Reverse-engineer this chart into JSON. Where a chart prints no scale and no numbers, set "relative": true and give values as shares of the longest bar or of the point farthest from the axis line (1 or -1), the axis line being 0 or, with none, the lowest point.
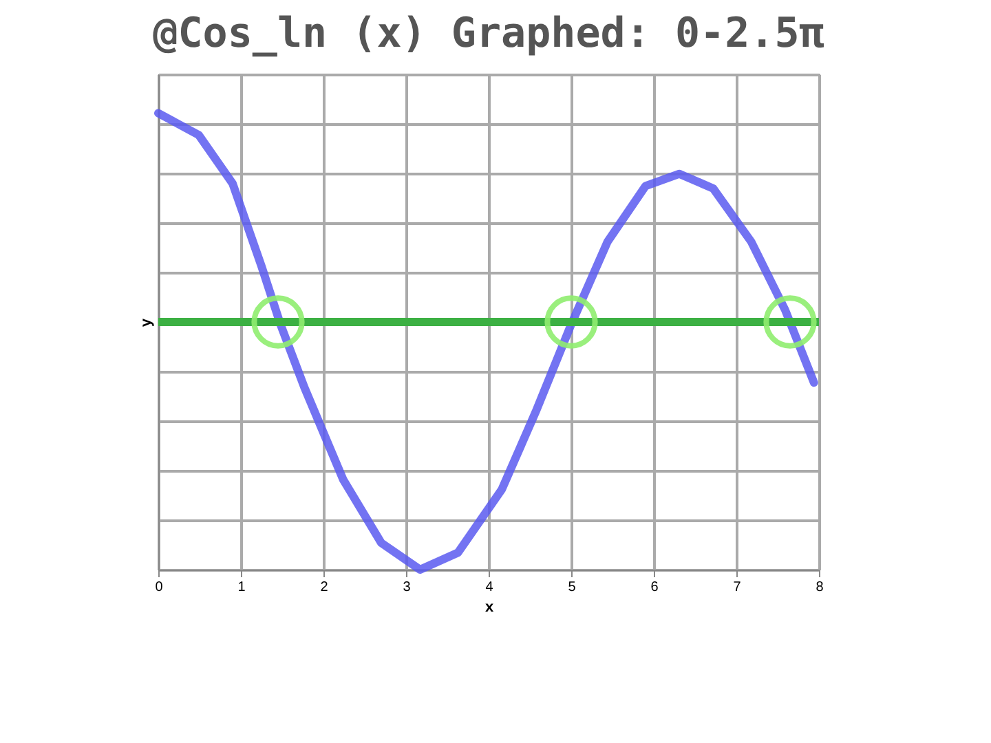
{
  "chart_data": {
    "type": "line",
    "title": "@Cos_ln (x) Graphed: 0-2.5π",
    "xlabel": "x",
    "ylabel": "y",
    "relative": true,
    "xlim": [
      0,
      8
    ],
    "xticks": [
      0,
      1,
      2,
      3,
      4,
      5,
      6,
      7,
      8
    ],
    "grid": true,
    "series": [
      {
        "color": "#5b5bf0",
        "x": [
          0,
          0.49,
          0.9,
          1.25,
          1.48,
          1.77,
          2.24,
          2.7,
          3.17,
          3.63,
          4.16,
          4.57,
          5.0,
          5.44,
          5.9,
          6.31,
          6.72,
          7.18,
          7.59,
          7.94
        ],
        "values": [
          0.843,
          0.755,
          0.559,
          0.225,
          -0.01,
          -0.265,
          -0.637,
          -0.892,
          -1,
          -0.931,
          -0.676,
          -0.363,
          -0.01,
          0.324,
          0.549,
          0.598,
          0.539,
          0.324,
          0.049,
          -0.245
        ]
      },
      {
        "type": "scatter",
        "color": "#90ee70",
        "marker": "circle",
        "x": [
          1.45,
          5.0,
          7.65
        ],
        "values": [
          0,
          0,
          0
        ]
      }
    ],
    "ref_lines": [
      {
        "axis": "y",
        "value": 0,
        "color": "#3cb043"
      }
    ]
  }
}
